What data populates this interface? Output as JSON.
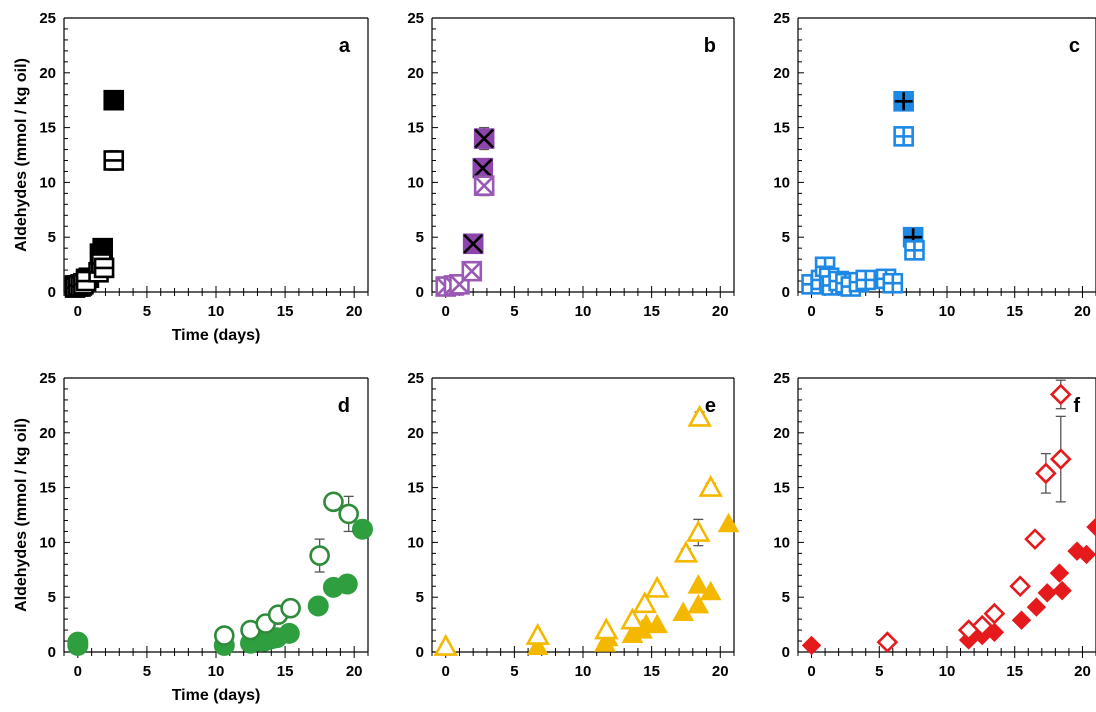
{
  "chart_data": [
    {
      "type": "scatter",
      "panel": "a",
      "xlabel": "Time (days)",
      "ylabel": "Aldehydes (mmol / kg oil)",
      "xlim": [
        -1,
        21
      ],
      "ylim": [
        0,
        25
      ],
      "xticks": [
        0,
        5,
        10,
        15,
        20
      ],
      "yticks": [
        0,
        5,
        10,
        15,
        20,
        25
      ],
      "series": [
        {
          "marker": "square-filled",
          "color": "#000000",
          "points": [
            [
              -0.2,
              0.6,
              0
            ],
            [
              0,
              0.5,
              0
            ],
            [
              0.2,
              0.7,
              0
            ],
            [
              0.4,
              0.8,
              0
            ],
            [
              0.6,
              1.2,
              0
            ],
            [
              0.8,
              1.3,
              0
            ],
            [
              1.6,
              3.5,
              0
            ],
            [
              1.8,
              4.0,
              0
            ],
            [
              2.6,
              17.5,
              0.8
            ]
          ]
        },
        {
          "marker": "square-hline",
          "color": "#000000",
          "points": [
            [
              -0.2,
              0.4,
              0
            ],
            [
              0,
              0.6,
              0
            ],
            [
              0.2,
              0.5,
              0
            ],
            [
              0.4,
              0.7,
              0
            ],
            [
              0.6,
              1.0,
              0
            ],
            [
              1.5,
              1.8,
              0
            ],
            [
              1.7,
              2.6,
              0
            ],
            [
              1.9,
              2.2,
              0
            ],
            [
              2.6,
              12.0,
              0.9
            ]
          ]
        }
      ]
    },
    {
      "type": "scatter",
      "panel": "b",
      "xlabel": "",
      "ylabel": "",
      "xlim": [
        -1,
        21
      ],
      "ylim": [
        0,
        25
      ],
      "xticks": [
        0,
        5,
        10,
        15,
        20
      ],
      "yticks": [
        0,
        5,
        10,
        15,
        20,
        25
      ],
      "series": [
        {
          "marker": "square-x-filled",
          "color": "#8e44ad",
          "points": [
            [
              2.0,
              4.4,
              0.8
            ],
            [
              2.7,
              11.3,
              0.5
            ],
            [
              2.8,
              14.0,
              1.0
            ]
          ]
        },
        {
          "marker": "square-x-open",
          "color": "#9b59b6",
          "points": [
            [
              0,
              0.5,
              0
            ],
            [
              0.6,
              0.6,
              0
            ],
            [
              1.0,
              0.7,
              0
            ],
            [
              1.9,
              1.9,
              0.3
            ],
            [
              2.8,
              9.7,
              0.9
            ]
          ]
        }
      ]
    },
    {
      "type": "scatter",
      "panel": "c",
      "xlabel": "",
      "ylabel": "",
      "xlim": [
        -1,
        21
      ],
      "ylim": [
        0,
        25
      ],
      "xticks": [
        0,
        5,
        10,
        15,
        20
      ],
      "yticks": [
        0,
        5,
        10,
        15,
        20,
        25
      ],
      "series": [
        {
          "marker": "square-plus-filled",
          "color": "#1e88e5",
          "points": [
            [
              6.8,
              17.4,
              0.8
            ],
            [
              7.5,
              5.0,
              0.5
            ]
          ]
        },
        {
          "marker": "square-plus-open",
          "color": "#1e88e5",
          "points": [
            [
              0,
              0.7,
              0
            ],
            [
              0.7,
              1.1,
              0
            ],
            [
              1.0,
              2.3,
              0
            ],
            [
              1.3,
              1.3,
              0
            ],
            [
              1.5,
              0.6,
              0
            ],
            [
              2.0,
              1.0,
              0
            ],
            [
              2.5,
              0.8,
              0
            ],
            [
              2.9,
              0.5,
              0
            ],
            [
              3.5,
              0.9,
              0
            ],
            [
              4.0,
              1.1,
              0
            ],
            [
              5.5,
              1.2,
              0
            ],
            [
              6.0,
              0.8,
              0
            ],
            [
              6.8,
              14.2,
              0.6
            ],
            [
              7.6,
              3.8,
              0.5
            ]
          ]
        }
      ]
    },
    {
      "type": "scatter",
      "panel": "d",
      "xlabel": "Time (days)",
      "ylabel": "Aldehydes (mmol / kg oil)",
      "xlim": [
        -1,
        21
      ],
      "ylim": [
        0,
        25
      ],
      "xticks": [
        0,
        5,
        10,
        15,
        20
      ],
      "yticks": [
        0,
        5,
        10,
        15,
        20,
        25
      ],
      "series": [
        {
          "marker": "circle-filled",
          "color": "#2e9e3e",
          "points": [
            [
              0,
              0.6,
              0
            ],
            [
              0,
              0.9,
              0
            ],
            [
              10.6,
              0.6,
              0
            ],
            [
              12.5,
              0.8,
              0
            ],
            [
              13.0,
              1.0,
              0
            ],
            [
              13.5,
              1.0,
              0
            ],
            [
              14.0,
              1.2,
              0
            ],
            [
              14.4,
              1.3,
              0
            ],
            [
              15.3,
              1.7,
              0
            ],
            [
              17.4,
              4.2,
              0
            ],
            [
              18.5,
              5.9,
              0
            ],
            [
              19.5,
              6.2,
              0
            ],
            [
              20.6,
              11.2,
              0
            ]
          ]
        },
        {
          "marker": "circle-open",
          "color": "#2e8b3a",
          "points": [
            [
              10.6,
              1.5,
              0
            ],
            [
              12.5,
              2.0,
              0.4
            ],
            [
              13.6,
              2.6,
              0.4
            ],
            [
              14.5,
              3.4,
              0.5
            ],
            [
              15.4,
              4.0,
              0.6
            ],
            [
              17.5,
              8.8,
              1.5
            ],
            [
              18.5,
              13.7,
              0.6
            ],
            [
              19.6,
              12.6,
              1.6
            ]
          ]
        }
      ]
    },
    {
      "type": "scatter",
      "panel": "e",
      "xlabel": "",
      "ylabel": "",
      "xlim": [
        -1,
        21
      ],
      "ylim": [
        0,
        25
      ],
      "xticks": [
        0,
        5,
        10,
        15,
        20
      ],
      "yticks": [
        0,
        5,
        10,
        15,
        20,
        25
      ],
      "series": [
        {
          "marker": "triangle-filled",
          "color": "#f5b800",
          "points": [
            [
              0,
              0.6,
              0
            ],
            [
              6.7,
              0.5,
              0
            ],
            [
              11.6,
              0.8,
              0
            ],
            [
              11.8,
              1.3,
              0
            ],
            [
              13.6,
              1.6,
              0
            ],
            [
              14.3,
              2.0,
              0
            ],
            [
              14.6,
              2.5,
              0
            ],
            [
              15.4,
              2.5,
              0
            ],
            [
              17.3,
              3.6,
              0
            ],
            [
              18.4,
              4.3,
              0
            ],
            [
              18.4,
              6.1,
              0
            ],
            [
              19.3,
              5.5,
              0
            ],
            [
              20.6,
              11.7,
              0
            ]
          ]
        },
        {
          "marker": "triangle-open",
          "color": "#f5b800",
          "points": [
            [
              0,
              0.5,
              0
            ],
            [
              6.7,
              1.5,
              0
            ],
            [
              11.7,
              2.0,
              0
            ],
            [
              13.6,
              2.9,
              0
            ],
            [
              14.5,
              4.4,
              0
            ],
            [
              15.4,
              5.8,
              0
            ],
            [
              17.5,
              9.0,
              0.4
            ],
            [
              18.4,
              10.9,
              1.2
            ],
            [
              18.5,
              21.4,
              0.5
            ],
            [
              19.3,
              15.0,
              0.4
            ]
          ]
        }
      ]
    },
    {
      "type": "scatter",
      "panel": "f",
      "xlabel": "",
      "ylabel": "",
      "xlim": [
        -1,
        21
      ],
      "ylim": [
        0,
        25
      ],
      "xticks": [
        0,
        5,
        10,
        15,
        20
      ],
      "yticks": [
        0,
        5,
        10,
        15,
        20,
        25
      ],
      "series": [
        {
          "marker": "diamond-filled",
          "color": "#e41a1c",
          "points": [
            [
              0,
              0.6,
              0
            ],
            [
              11.6,
              1.1,
              0
            ],
            [
              12.6,
              1.5,
              0
            ],
            [
              13.5,
              1.8,
              0
            ],
            [
              15.5,
              2.9,
              0
            ],
            [
              16.6,
              4.1,
              0
            ],
            [
              17.4,
              5.4,
              0
            ],
            [
              18.3,
              7.2,
              0
            ],
            [
              18.5,
              5.6,
              0
            ],
            [
              19.6,
              9.2,
              0
            ],
            [
              20.3,
              8.9,
              0
            ],
            [
              21.0,
              11.4,
              0
            ]
          ]
        },
        {
          "marker": "diamond-open",
          "color": "#e41a1c",
          "points": [
            [
              5.6,
              0.9,
              0
            ],
            [
              11.6,
              2.0,
              0
            ],
            [
              12.6,
              2.4,
              0
            ],
            [
              13.5,
              3.5,
              0
            ],
            [
              15.4,
              6.0,
              0
            ],
            [
              16.5,
              10.3,
              0
            ],
            [
              17.3,
              16.3,
              1.8
            ],
            [
              18.4,
              17.6,
              3.9
            ],
            [
              18.4,
              23.5,
              1.3
            ]
          ]
        }
      ]
    }
  ]
}
